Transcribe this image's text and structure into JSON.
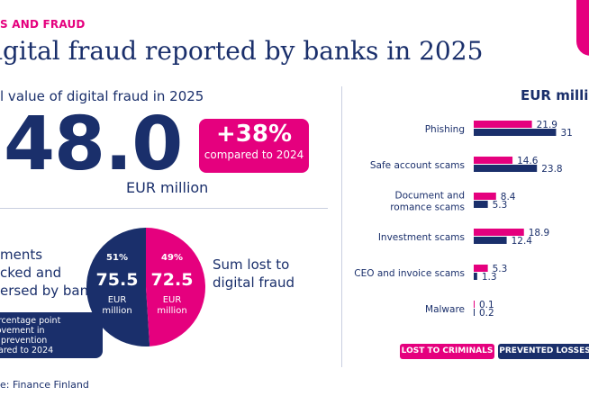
{
  "header": {
    "category": "S AND FRAUD",
    "title": "igital fraud reported by banks in 2025"
  },
  "summary": {
    "subtitle": "l value of digital fraud in 2025",
    "total": "48.0",
    "total_unit": "EUR million",
    "change": "+38%",
    "change_note": "compared to 2024"
  },
  "pie": {
    "left_label": [
      "ments",
      "cked and",
      "ersed by banks"
    ],
    "right_label": [
      "Sum lost to",
      "digital fraud"
    ],
    "prevented": {
      "pct": "51%",
      "value": "75.5",
      "unit_1": "EUR",
      "unit_2": "million"
    },
    "lost": {
      "pct": "49%",
      "value": "72.5",
      "unit_1": "EUR",
      "unit_2": "million"
    },
    "colors": {
      "prevented": "#1a2f6b",
      "lost": "#e5007e"
    },
    "callout": [
      "ercentage point",
      "rovement in",
      "d prevention",
      "pared to 2024"
    ]
  },
  "source": "e: Finance Finland",
  "chart_data": {
    "type": "bar",
    "orientation": "horizontal",
    "title": "EUR millio",
    "categories": [
      [
        "Phishing"
      ],
      [
        "Safe account scams"
      ],
      [
        "Document and",
        "romance scams"
      ],
      [
        "Investment scams"
      ],
      [
        "CEO and invoice scams"
      ],
      [
        "Malware"
      ]
    ],
    "series": [
      {
        "name": "LOST TO CRIMINALS",
        "color": "#e5007e",
        "values": [
          21.9,
          14.6,
          8.4,
          18.9,
          5.3,
          0.1
        ],
        "labels": [
          "21.9",
          "14.6",
          "8.4",
          "18.9",
          "5.3",
          "0.1"
        ]
      },
      {
        "name": "PREVENTED LOSSES",
        "color": "#1a2f6b",
        "values": [
          31,
          23.8,
          5.3,
          12.4,
          1.3,
          0.2
        ],
        "labels": [
          "31",
          "23.8",
          "5.3",
          "12.4",
          "1.3",
          "0.2"
        ]
      }
    ],
    "legend": "bottom",
    "grid": false
  }
}
